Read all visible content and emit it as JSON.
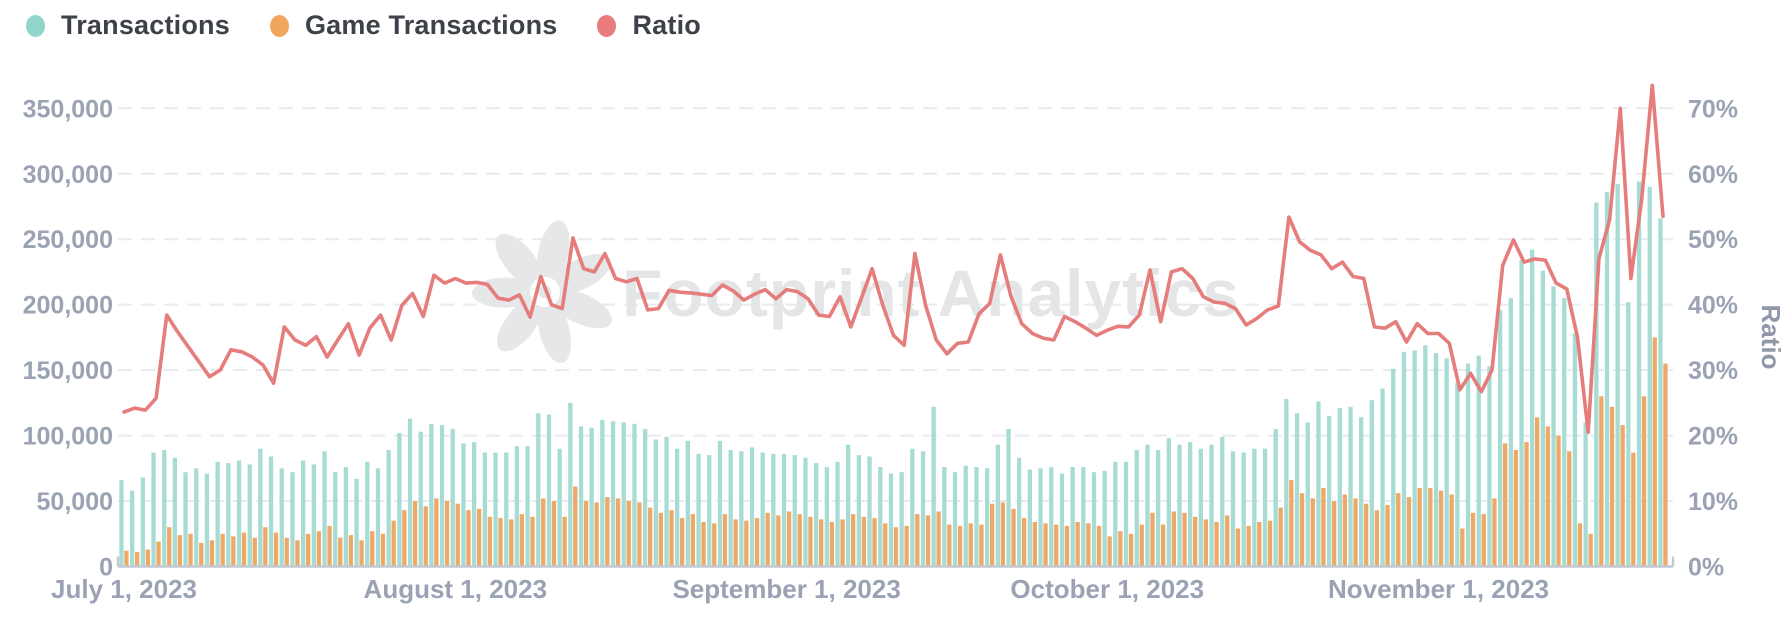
{
  "legend": [
    {
      "label": "Transactions",
      "color": "#8fd5cb"
    },
    {
      "label": "Game Transactions",
      "color": "#efa75e"
    },
    {
      "label": "Ratio",
      "color": "#e87c7c"
    }
  ],
  "watermark": {
    "text": "Footprint Analytics",
    "icon": "flower-logo",
    "color": "#e6e7e9"
  },
  "chart_data": {
    "type": "combo-bar-line",
    "x_range": {
      "start": "July 1, 2023",
      "end": "November 22, 2023",
      "points": 145,
      "interval": "daily"
    },
    "x_tick_labels": [
      "July 1, 2023",
      "August 1, 2023",
      "September 1, 2023",
      "October 1, 2023",
      "November 1, 2023"
    ],
    "x_tick_day_index": [
      0,
      31,
      62,
      92,
      123
    ],
    "y_left": {
      "min": 0,
      "max": 350000,
      "tick_labels": [
        "0",
        "50,000",
        "100,000",
        "150,000",
        "200,000",
        "250,000",
        "300,000",
        "350,000"
      ],
      "grid": "dashed"
    },
    "y_right": {
      "min": 0,
      "max": 70,
      "label": "Ratio",
      "tick_labels": [
        "0%",
        "10%",
        "20%",
        "30%",
        "40%",
        "50%",
        "60%",
        "70%"
      ]
    },
    "series": [
      {
        "name": "Transactions",
        "type": "bar",
        "axis": "left",
        "color": "#a7dcd4",
        "values": [
          66000,
          58000,
          68000,
          87000,
          89000,
          83000,
          72000,
          75000,
          71000,
          80000,
          79000,
          81000,
          78000,
          90000,
          84000,
          75000,
          72000,
          81000,
          78000,
          88000,
          72000,
          76000,
          67000,
          80000,
          75000,
          89000,
          102000,
          113000,
          103000,
          109000,
          108000,
          105000,
          94000,
          95000,
          87000,
          87000,
          87000,
          92000,
          92000,
          117000,
          116000,
          90000,
          125000,
          107000,
          106000,
          112000,
          111000,
          110000,
          109000,
          105000,
          97000,
          99000,
          90000,
          96000,
          86000,
          85000,
          96000,
          89000,
          88000,
          91000,
          87000,
          86000,
          86000,
          85000,
          83000,
          79000,
          76000,
          80000,
          93000,
          85000,
          84000,
          76000,
          71000,
          72000,
          90000,
          88000,
          122000,
          76000,
          72000,
          77000,
          76000,
          75000,
          93000,
          105000,
          83000,
          74000,
          75000,
          76000,
          71000,
          76000,
          76000,
          72000,
          73000,
          80000,
          80000,
          89000,
          93000,
          89000,
          98000,
          93000,
          95000,
          90000,
          93000,
          99000,
          88000,
          87000,
          90000,
          90000,
          105000,
          128000,
          117000,
          110000,
          126000,
          115000,
          121000,
          122000,
          114000,
          127000,
          136000,
          151000,
          164000,
          165000,
          169000,
          163000,
          159000,
          140000,
          155000,
          161000,
          153000,
          196000,
          205000,
          234000,
          242000,
          226000,
          214000,
          205000,
          178000,
          110000,
          278000,
          286000,
          292000,
          202000,
          294000,
          290000,
          266000
        ]
      },
      {
        "name": "Game Transactions",
        "type": "bar",
        "axis": "left",
        "color": "#eca968",
        "values": [
          12000,
          11000,
          13000,
          19000,
          30000,
          24000,
          25000,
          18000,
          20000,
          25000,
          23000,
          26000,
          22000,
          30000,
          26000,
          22000,
          20000,
          25000,
          27000,
          31000,
          22000,
          24000,
          20000,
          27000,
          25000,
          35000,
          43000,
          50000,
          46000,
          52000,
          50000,
          48000,
          43000,
          44000,
          38000,
          37000,
          36000,
          40000,
          38000,
          52000,
          50000,
          38000,
          61000,
          50000,
          49000,
          53000,
          52000,
          50000,
          49000,
          45000,
          41000,
          43000,
          37000,
          40000,
          34000,
          33000,
          40000,
          36000,
          35000,
          37000,
          41000,
          39000,
          42000,
          40000,
          38000,
          36000,
          34000,
          36000,
          40000,
          38000,
          37000,
          33000,
          30000,
          31000,
          40000,
          39000,
          42000,
          32000,
          31000,
          33000,
          32000,
          48000,
          49000,
          44000,
          37000,
          34000,
          33000,
          32000,
          31000,
          34000,
          33000,
          31000,
          23000,
          27000,
          25000,
          32000,
          41000,
          32000,
          42000,
          41000,
          38000,
          36000,
          34000,
          39000,
          29000,
          31000,
          34000,
          35000,
          45000,
          66000,
          56000,
          52000,
          60000,
          50000,
          55000,
          52000,
          48000,
          43000,
          47000,
          56000,
          53000,
          60000,
          60000,
          58000,
          55000,
          29000,
          41000,
          40000,
          52000,
          94000,
          89000,
          95000,
          114000,
          107000,
          100000,
          88000,
          33000,
          25000,
          130000,
          122000,
          108000,
          87000,
          130000,
          175000,
          155000
        ]
      },
      {
        "name": "Ratio",
        "type": "line",
        "axis": "right",
        "unit": "%",
        "color": "#e57d7c",
        "values": [
          23.6,
          24.2,
          23.9,
          25.7,
          38.4,
          35.9,
          33.6,
          31.3,
          29,
          30,
          33.1,
          32.8,
          32,
          30.8,
          28,
          36.6,
          34.6,
          33.8,
          35.1,
          32,
          34.6,
          37.1,
          32.3,
          36.4,
          38.4,
          34.6,
          39.9,
          41.7,
          38.2,
          44.5,
          43.3,
          44,
          43.3,
          43.4,
          43.1,
          41,
          40.7,
          41.5,
          38.1,
          44.3,
          40,
          39.4,
          50.2,
          45.5,
          45,
          47.8,
          44,
          43.5,
          44,
          39.2,
          39.4,
          42.2,
          41.9,
          41.8,
          41.6,
          41.4,
          43,
          42.1,
          40.7,
          41.6,
          42.3,
          40.9,
          42.3,
          42,
          40.9,
          38.4,
          38.2,
          41.2,
          36.6,
          41,
          45.5,
          39.9,
          35.3,
          33.8,
          47.8,
          39.9,
          34.6,
          32.5,
          34.1,
          34.3,
          38.6,
          40.2,
          47.6,
          41.2,
          37.1,
          35.6,
          34.9,
          34.6,
          38.2,
          37.4,
          36.4,
          35.3,
          36.1,
          36.7,
          36.6,
          38.4,
          45.3,
          37.4,
          45,
          45.5,
          44,
          41.2,
          40.4,
          40.2,
          39.4,
          36.9,
          37.9,
          39.2,
          39.8,
          53.4,
          49.6,
          48.3,
          47.6,
          45.5,
          46.5,
          44.3,
          44,
          36.6,
          36.4,
          37.4,
          34.3,
          37.1,
          35.6,
          35.6,
          34.1,
          27,
          29.5,
          26.7,
          30,
          46,
          49.9,
          46.5,
          47,
          46.8,
          43.3,
          42.4,
          35,
          20.5,
          47,
          53,
          70,
          44,
          56,
          73.5,
          53.5
        ]
      }
    ]
  }
}
